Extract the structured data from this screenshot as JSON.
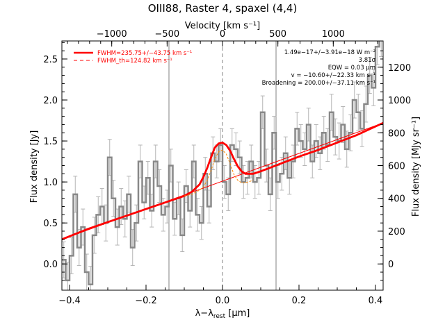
{
  "chart_data": {
    "type": "line",
    "title": "OIII88, Raster 4, spaxel (4,4)",
    "xlabel": "λ−λrest [μm]",
    "xlabel_main": "λ−λ",
    "xlabel_sub": "rest",
    "xlabel_unit": " [μm]",
    "ylabel": "Flux density [Jy]",
    "top_xlabel": "Velocity [km s⁻¹]",
    "right_ylabel": "Flux density [MJy sr⁻¹]",
    "xlim": [
      -0.42,
      0.42
    ],
    "ylim": [
      -0.32,
      2.72
    ],
    "top_xlim": [
      -1450,
      1450
    ],
    "right_ylim": [
      -160,
      1360
    ],
    "x_ticks": [
      -0.4,
      -0.2,
      0.0,
      0.2,
      0.4
    ],
    "x_tick_labels": [
      "−0.4",
      "−0.2",
      "0.0",
      "0.2",
      "0.4"
    ],
    "y_ticks": [
      0.0,
      0.5,
      1.0,
      1.5,
      2.0,
      2.5
    ],
    "y_tick_labels": [
      "0.0",
      "0.5",
      "1.0",
      "1.5",
      "2.0",
      "2.5"
    ],
    "top_ticks": [
      -1000,
      -500,
      0,
      500,
      1000
    ],
    "top_tick_labels": [
      "−1000",
      "−500",
      "0",
      "500",
      "1000"
    ],
    "right_ticks": [
      0,
      200,
      400,
      600,
      800,
      1000,
      1200
    ],
    "right_tick_labels": [
      "0",
      "200",
      "400",
      "600",
      "800",
      "1000",
      "1200"
    ],
    "vlines": [
      -0.14,
      0.0,
      0.14
    ],
    "legend": {
      "placement": "top-left",
      "items": [
        {
          "label": "FWHM=235.75+/−43.75 km s⁻¹",
          "style": "solid",
          "color": "#ff0000"
        },
        {
          "label": "FWHM_th=124.82 km s⁻¹",
          "style": "dashed",
          "color": "#ff0000"
        }
      ]
    },
    "annotations": [
      "1.49e−17+/−3.91e−18 W m⁻²",
      "3.81σ",
      "EQW = 0.03 μm",
      "v = −10.60+/−22.33 km s⁻¹",
      "Broadening = 200.00+/−37.11 km s⁻¹"
    ],
    "series": [
      {
        "style": "step",
        "color": "#888888",
        "x": [
          -0.415,
          -0.405,
          -0.395,
          -0.385,
          -0.375,
          -0.365,
          -0.355,
          -0.345,
          -0.335,
          -0.325,
          -0.315,
          -0.305,
          -0.295,
          -0.285,
          -0.275,
          -0.265,
          -0.255,
          -0.245,
          -0.235,
          -0.225,
          -0.215,
          -0.205,
          -0.195,
          -0.185,
          -0.175,
          -0.165,
          -0.155,
          -0.145,
          -0.135,
          -0.125,
          -0.115,
          -0.105,
          -0.095,
          -0.085,
          -0.075,
          -0.065,
          -0.055,
          -0.045,
          -0.035,
          -0.025,
          -0.015,
          -0.005,
          0.005,
          0.015,
          0.025,
          0.035,
          0.045,
          0.055,
          0.065,
          0.075,
          0.085,
          0.095,
          0.105,
          0.115,
          0.125,
          0.135,
          0.145,
          0.155,
          0.165,
          0.175,
          0.185,
          0.195,
          0.205,
          0.215,
          0.225,
          0.235,
          0.245,
          0.255,
          0.265,
          0.275,
          0.285,
          0.295,
          0.305,
          0.315,
          0.325,
          0.335,
          0.345,
          0.355,
          0.365,
          0.375,
          0.385,
          0.395,
          0.405,
          0.415
        ],
        "y": [
          0.05,
          -0.2,
          0.1,
          0.85,
          0.2,
          0.45,
          -0.1,
          -0.25,
          0.35,
          0.6,
          0.7,
          0.5,
          1.3,
          0.8,
          0.45,
          0.7,
          0.55,
          0.85,
          0.2,
          0.5,
          1.25,
          0.75,
          1.05,
          0.65,
          1.25,
          0.95,
          0.6,
          0.7,
          1.2,
          0.55,
          0.8,
          0.35,
          0.95,
          0.65,
          1.25,
          0.6,
          0.5,
          1.1,
          0.7,
          1.35,
          1.25,
          1.45,
          1.0,
          0.85,
          1.45,
          1.4,
          1.3,
          1.0,
          1.05,
          1.25,
          1.0,
          1.05,
          1.85,
          1.2,
          0.85,
          1.6,
          1.0,
          1.1,
          1.35,
          1.05,
          1.25,
          1.65,
          1.5,
          1.4,
          1.7,
          1.25,
          1.5,
          1.35,
          1.6,
          1.45,
          1.85,
          1.55,
          1.5,
          1.7,
          1.4,
          1.6,
          2.0,
          1.85,
          1.65,
          1.95,
          2.3,
          2.15,
          2.65,
          2.75
        ],
        "err": [
          0.22,
          0.22,
          0.22,
          0.22,
          0.22,
          0.22,
          0.22,
          0.22,
          0.22,
          0.22,
          0.22,
          0.22,
          0.22,
          0.22,
          0.22,
          0.22,
          0.22,
          0.22,
          0.22,
          0.22,
          0.2,
          0.2,
          0.2,
          0.2,
          0.2,
          0.2,
          0.2,
          0.2,
          0.2,
          0.2,
          0.2,
          0.2,
          0.2,
          0.2,
          0.2,
          0.2,
          0.2,
          0.2,
          0.2,
          0.2,
          0.2,
          0.2,
          0.2,
          0.2,
          0.2,
          0.2,
          0.2,
          0.2,
          0.2,
          0.2,
          0.2,
          0.2,
          0.2,
          0.2,
          0.2,
          0.2,
          0.2,
          0.2,
          0.2,
          0.2,
          0.2,
          0.2,
          0.2,
          0.2,
          0.2,
          0.2,
          0.2,
          0.2,
          0.2,
          0.2,
          0.22,
          0.22,
          0.22,
          0.22,
          0.22,
          0.22,
          0.22,
          0.22,
          0.22,
          0.22,
          0.22,
          0.22,
          0.22,
          0.22
        ]
      },
      {
        "style": "thick-solid",
        "color": "#ff0000",
        "x": [
          -0.42,
          -0.35,
          -0.3,
          -0.25,
          -0.2,
          -0.15,
          -0.1,
          -0.08,
          -0.06,
          -0.05,
          -0.04,
          -0.03,
          -0.02,
          -0.01,
          0.0,
          0.01,
          0.02,
          0.03,
          0.04,
          0.05,
          0.06,
          0.08,
          0.1,
          0.15,
          0.2,
          0.25,
          0.3,
          0.35,
          0.42
        ],
        "y": [
          0.3,
          0.43,
          0.51,
          0.59,
          0.67,
          0.75,
          0.83,
          0.88,
          0.97,
          1.06,
          1.17,
          1.3,
          1.42,
          1.47,
          1.48,
          1.45,
          1.38,
          1.28,
          1.19,
          1.13,
          1.1,
          1.1,
          1.13,
          1.22,
          1.31,
          1.39,
          1.48,
          1.57,
          1.72
        ]
      },
      {
        "style": "thin-solid",
        "color": "#ff0000",
        "x": [
          -0.42,
          0.42
        ],
        "y": [
          0.3,
          1.72
        ]
      },
      {
        "style": "dashed",
        "color": "#ff8800",
        "x": [
          -0.1,
          -0.08,
          -0.06,
          -0.05,
          -0.04,
          -0.03,
          -0.02,
          -0.01,
          0.0,
          0.01,
          0.02,
          0.03,
          0.04,
          0.05,
          0.06,
          0.08
        ],
        "y": [
          0.83,
          0.85,
          0.9,
          0.94,
          1.02,
          1.14,
          1.28,
          1.37,
          1.39,
          1.34,
          1.22,
          1.09,
          1.02,
          0.99,
          0.99,
          1.02
        ]
      }
    ]
  }
}
